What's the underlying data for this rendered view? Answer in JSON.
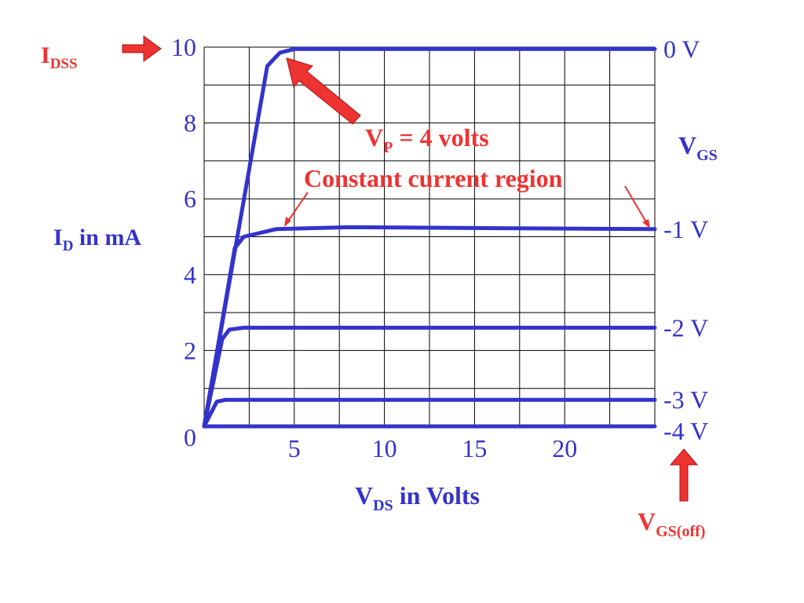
{
  "colors": {
    "curve": "#3333cc",
    "label_blue": "#3333cc",
    "annotation_red": "#ee3333",
    "arrow_fill": "#ee3333",
    "grid": "#000000",
    "tick_text": "#3333cc"
  },
  "labels": {
    "idss": {
      "main": "I",
      "sub": "DSS"
    },
    "id_axis": {
      "main": "I",
      "sub": "D",
      "tail": " in mA"
    },
    "vds_axis": {
      "main": "V",
      "sub": "DS",
      "tail": " in Volts"
    },
    "vgs_title": {
      "main": "V",
      "sub": "GS"
    },
    "vp": {
      "main": "V",
      "sub": "P",
      "tail": " = 4 volts"
    },
    "region": "Constant current region",
    "vgs_off": {
      "main": "V",
      "sub": "GS(off)"
    }
  },
  "chart_data": {
    "type": "line",
    "xlabel": "V_DS in Volts",
    "ylabel": "I_D in mA",
    "xlim": [
      0,
      25
    ],
    "ylim": [
      0,
      10
    ],
    "x_ticks": [
      "5",
      "10",
      "15",
      "20"
    ],
    "x_tick_values": [
      5,
      10,
      15,
      20
    ],
    "y_ticks": [
      "0",
      "2",
      "4",
      "6",
      "8",
      "10"
    ],
    "y_tick_values": [
      0,
      2,
      4,
      6,
      8,
      10
    ],
    "grid": true,
    "series": [
      {
        "name": "0 V",
        "points": [
          [
            0,
            0
          ],
          [
            3.5,
            9.5
          ],
          [
            4.2,
            9.85
          ],
          [
            5,
            9.95
          ],
          [
            25,
            9.95
          ]
        ]
      },
      {
        "name": "-1 V",
        "points": [
          [
            0,
            0
          ],
          [
            1.7,
            4.7
          ],
          [
            2.2,
            5.0
          ],
          [
            4,
            5.2
          ],
          [
            8,
            5.25
          ],
          [
            25,
            5.2
          ]
        ]
      },
      {
        "name": "-2 V",
        "points": [
          [
            0,
            0
          ],
          [
            1.0,
            2.3
          ],
          [
            1.4,
            2.55
          ],
          [
            2.2,
            2.6
          ],
          [
            25,
            2.6
          ]
        ]
      },
      {
        "name": "-3 V",
        "points": [
          [
            0,
            0
          ],
          [
            0.7,
            0.65
          ],
          [
            1.2,
            0.7
          ],
          [
            25,
            0.7
          ]
        ]
      },
      {
        "name": "-4 V",
        "points": [
          [
            0,
            0
          ],
          [
            25,
            0
          ]
        ]
      }
    ]
  }
}
